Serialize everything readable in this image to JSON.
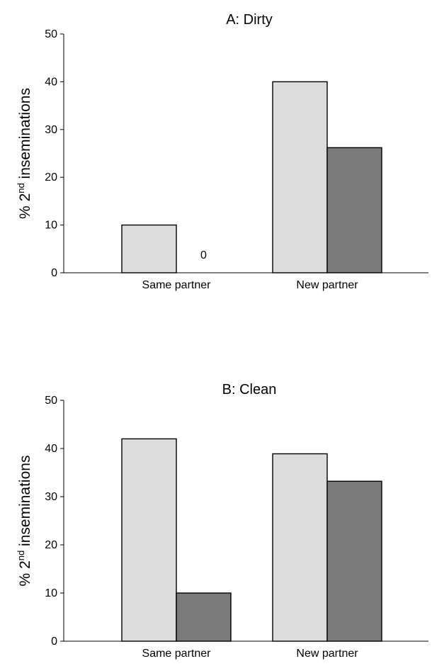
{
  "chart_data": [
    {
      "type": "bar",
      "title": "A: Dirty",
      "ylabel": "% 2nd inseminations",
      "ylabel_main": "% 2",
      "ylabel_sup": "nd",
      "ylabel_rest": " inseminations",
      "ylim": [
        0,
        50
      ],
      "yticks": [
        "0",
        "10",
        "20",
        "30",
        "40",
        "50"
      ],
      "categories": [
        "Same partner",
        "New partner"
      ],
      "series": [
        {
          "values": [
            10,
            40
          ],
          "color": "#dcdcdc"
        },
        {
          "values": [
            0,
            26.2
          ],
          "color": "#7a7a7a"
        }
      ],
      "annotations": [
        {
          "text": "0",
          "category": 0,
          "series": 1
        }
      ],
      "grid": false,
      "legend": "none"
    },
    {
      "type": "bar",
      "title": "B: Clean",
      "ylabel": "% 2nd inseminations",
      "ylabel_main": "% 2",
      "ylabel_sup": "nd",
      "ylabel_rest": " inseminations",
      "ylim": [
        0,
        50
      ],
      "yticks": [
        "0",
        "10",
        "20",
        "30",
        "40",
        "50"
      ],
      "categories": [
        "Same partner",
        "New partner"
      ],
      "series": [
        {
          "values": [
            42,
            38.9
          ],
          "color": "#dcdcdc"
        },
        {
          "values": [
            10,
            33.2
          ],
          "color": "#7a7a7a"
        }
      ],
      "annotations": [],
      "grid": false,
      "legend": "none"
    }
  ]
}
